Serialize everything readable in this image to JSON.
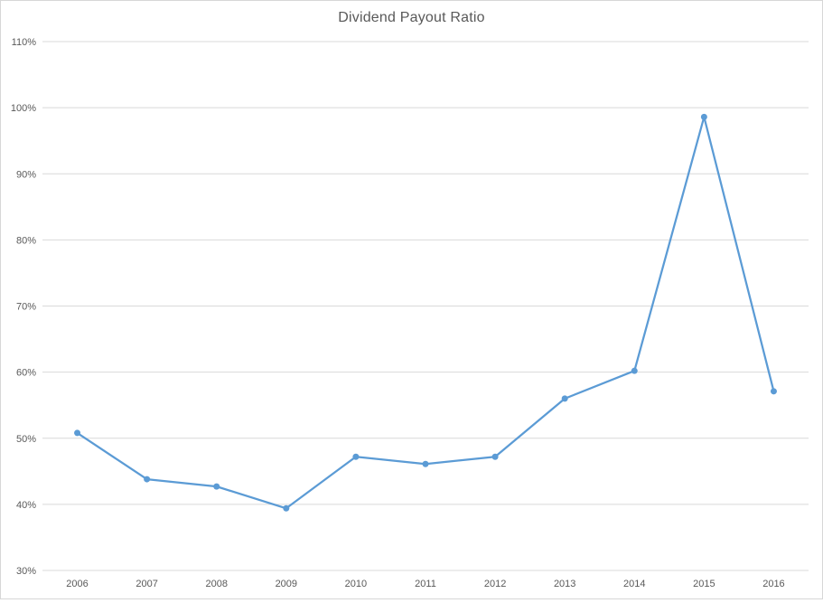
{
  "chart_data": {
    "type": "line",
    "title": "Dividend Payout Ratio",
    "categories": [
      "2006",
      "2007",
      "2008",
      "2009",
      "2010",
      "2011",
      "2012",
      "2013",
      "2014",
      "2015",
      "2016"
    ],
    "series": [
      {
        "name": "Dividend Payout Ratio",
        "values": [
          50.8,
          43.8,
          42.7,
          39.4,
          47.2,
          46.1,
          47.2,
          56.0,
          60.2,
          98.6,
          57.1
        ]
      }
    ],
    "ylabel": "",
    "xlabel": "",
    "ylim": [
      30,
      110
    ],
    "ytick_step": 10,
    "ytick_labels": [
      "30%",
      "40%",
      "50%",
      "60%",
      "70%",
      "80%",
      "90%",
      "100%",
      "110%"
    ],
    "grid": true,
    "legend": "none",
    "line_color": "#5b9bd5",
    "marker": "circle",
    "marker_radius": 3.5,
    "grid_color": "#d9d9d9",
    "title_color": "#595959",
    "label_color": "#595959"
  }
}
